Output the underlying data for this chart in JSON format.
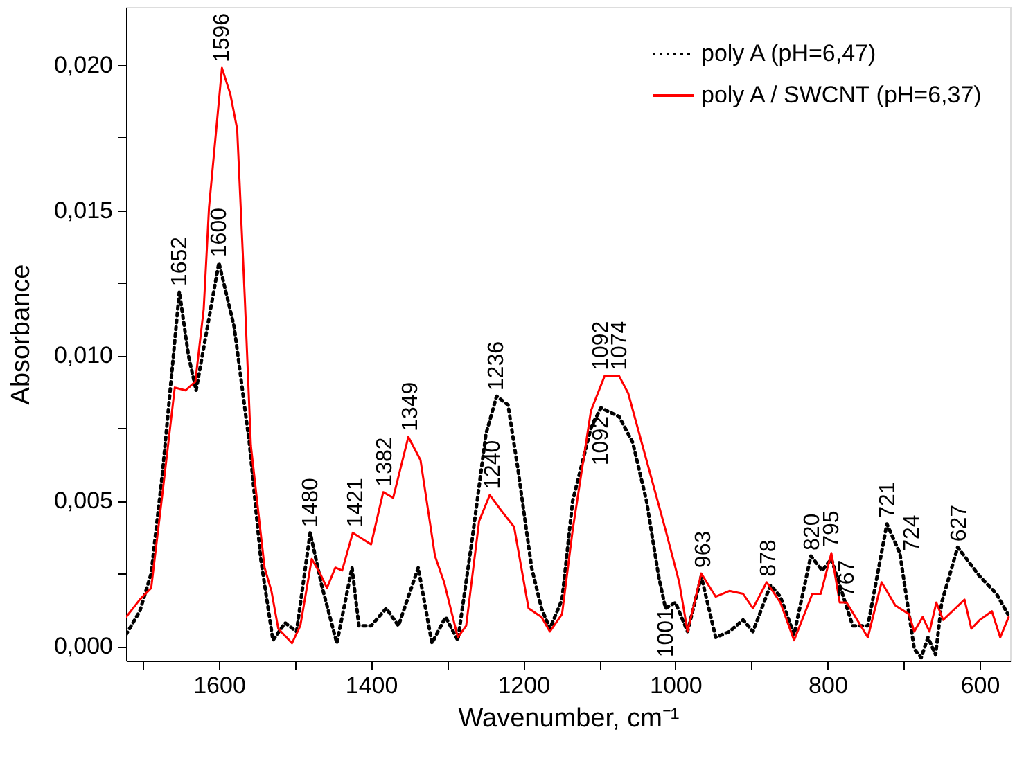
{
  "chart_data": {
    "type": "line",
    "xlabel": "Wavenumber, cm⁻¹",
    "ylabel": "Absorbance",
    "xlim": [
      1722,
      560
    ],
    "ylim": [
      -0.0005,
      0.022
    ],
    "xticks": [
      {
        "value": 1700,
        "label": null
      },
      1600,
      {
        "value": 1500,
        "label": null
      },
      1400,
      {
        "value": 1300,
        "label": null
      },
      1200,
      {
        "value": 1100,
        "label": null
      },
      1000,
      {
        "value": 900,
        "label": null
      },
      800,
      {
        "value": 700,
        "label": null
      },
      600
    ],
    "yticks": [
      {
        "value": 0.0,
        "label": "0,000"
      },
      {
        "value": 0.0025,
        "label": null
      },
      {
        "value": 0.005,
        "label": "0,005"
      },
      {
        "value": 0.0075,
        "label": null
      },
      {
        "value": 0.01,
        "label": "0,010"
      },
      {
        "value": 0.0125,
        "label": null
      },
      {
        "value": 0.015,
        "label": "0,015"
      },
      {
        "value": 0.0175,
        "label": null
      },
      {
        "value": 0.02,
        "label": "0,020"
      }
    ],
    "grid": false,
    "legend": "top right",
    "marker": "none",
    "series": [
      {
        "name": "poly A (pH=6,47)",
        "color": "#000000",
        "line_style": "dotted",
        "x": [
          1722,
          1704,
          1689,
          1674,
          1652,
          1640,
          1630,
          1615,
          1600,
          1580,
          1560,
          1545,
          1529,
          1513,
          1498,
          1480,
          1465,
          1445,
          1425,
          1416,
          1400,
          1380,
          1364,
          1338,
          1320,
          1302,
          1286,
          1267,
          1249,
          1235,
          1220,
          1207,
          1189,
          1176,
          1165,
          1149,
          1135,
          1111,
          1098,
          1074,
          1056,
          1038,
          1022,
          1013,
          1000,
          984,
          966,
          947,
          929,
          911,
          898,
          875,
          862,
          844,
          822,
          807,
          795,
          767,
          747,
          722,
          705,
          686,
          677,
          668,
          658,
          650,
          629,
          600,
          578,
          563
        ],
        "values": [
          0.0004,
          0.0012,
          0.0025,
          0.006,
          0.0122,
          0.01,
          0.0088,
          0.011,
          0.0132,
          0.011,
          0.007,
          0.003,
          0.0002,
          0.0008,
          0.0005,
          0.0039,
          0.0021,
          0.0001,
          0.0027,
          0.0007,
          0.0007,
          0.0013,
          0.0007,
          0.0027,
          0.0001,
          0.001,
          0.0002,
          0.0037,
          0.0073,
          0.0086,
          0.0083,
          0.0061,
          0.0027,
          0.0013,
          0.0006,
          0.0016,
          0.005,
          0.0075,
          0.0082,
          0.0079,
          0.007,
          0.005,
          0.0024,
          0.0013,
          0.0015,
          0.0005,
          0.0024,
          0.0003,
          0.0005,
          0.0009,
          0.0005,
          0.0021,
          0.0017,
          0.0004,
          0.0031,
          0.0026,
          0.003,
          0.0007,
          0.0007,
          0.0042,
          0.0032,
          -0.0001,
          -0.0004,
          0.0003,
          -0.0003,
          0.0015,
          0.0034,
          0.0024,
          0.0018,
          0.0011
        ]
      },
      {
        "name": "poly A / SWCNT (pH=6,37)",
        "color": "#ff0000",
        "line_style": "solid",
        "x": [
          1722,
          1704,
          1689,
          1674,
          1658,
          1644,
          1631,
          1620,
          1613,
          1596,
          1585,
          1576,
          1566,
          1558,
          1540,
          1531,
          1522,
          1504,
          1493,
          1478,
          1467,
          1458,
          1447,
          1438,
          1424,
          1400,
          1384,
          1371,
          1351,
          1335,
          1316,
          1304,
          1286,
          1275,
          1258,
          1244,
          1227,
          1212,
          1193,
          1176,
          1165,
          1149,
          1135,
          1111,
          1093,
          1074,
          1062,
          1038,
          1013,
          995,
          984,
          966,
          947,
          929,
          911,
          898,
          880,
          862,
          844,
          820,
          809,
          795,
          784,
          775,
          747,
          729,
          711,
          693,
          686,
          675,
          666,
          657,
          648,
          620,
          611,
          600,
          584,
          573,
          562
        ],
        "values": [
          0.001,
          0.0016,
          0.002,
          0.0053,
          0.0089,
          0.0088,
          0.0091,
          0.0116,
          0.0151,
          0.0199,
          0.019,
          0.0178,
          0.012,
          0.0069,
          0.0027,
          0.0019,
          0.0006,
          0.0001,
          0.0007,
          0.003,
          0.0025,
          0.002,
          0.0027,
          0.0026,
          0.0039,
          0.0035,
          0.0053,
          0.0051,
          0.0072,
          0.0064,
          0.0031,
          0.0022,
          0.0003,
          0.0007,
          0.0043,
          0.0052,
          0.0046,
          0.0041,
          0.0013,
          0.001,
          0.0005,
          0.0011,
          0.004,
          0.0081,
          0.0093,
          0.0093,
          0.0087,
          0.0064,
          0.004,
          0.0022,
          0.0005,
          0.0025,
          0.0017,
          0.0019,
          0.0018,
          0.0013,
          0.0022,
          0.0015,
          0.0002,
          0.0018,
          0.0018,
          0.0032,
          0.0015,
          0.0015,
          0.0003,
          0.0022,
          0.0014,
          0.0011,
          0.0005,
          0.001,
          0.0005,
          0.0015,
          0.0009,
          0.0016,
          0.0006,
          0.0009,
          0.0012,
          0.0003,
          0.001
        ]
      }
    ],
    "annotations": [
      {
        "text": "1596",
        "x": 1596,
        "y": 0.0199
      },
      {
        "text": "1652",
        "x": 1652,
        "y": 0.0122
      },
      {
        "text": "1600",
        "x": 1600,
        "y": 0.0132
      },
      {
        "text": "1480",
        "x": 1480,
        "y": 0.0039
      },
      {
        "text": "1421",
        "x": 1421,
        "y": 0.0039
      },
      {
        "text": "1382",
        "x": 1382,
        "y": 0.0053
      },
      {
        "text": "1349",
        "x": 1349,
        "y": 0.0072
      },
      {
        "text": "1236",
        "x": 1236,
        "y": 0.0086
      },
      {
        "text": "1240",
        "x": 1240,
        "y": 0.0052
      },
      {
        "text": "1092",
        "x": 1098,
        "y": 0.0093
      },
      {
        "text": "1074",
        "x": 1074,
        "y": 0.0093
      },
      {
        "text": "1092",
        "x": 1098,
        "y": 0.0082
      },
      {
        "text": "1001",
        "x": 1000,
        "y": 0.0015
      },
      {
        "text": "963",
        "x": 963,
        "y": 0.0025
      },
      {
        "text": "878",
        "x": 878,
        "y": 0.0022
      },
      {
        "text": "820",
        "x": 820,
        "y": 0.0031
      },
      {
        "text": "795",
        "x": 795,
        "y": 0.0032
      },
      {
        "text": "767",
        "x": 775,
        "y": 0.0015
      },
      {
        "text": "721",
        "x": 721,
        "y": 0.0042
      },
      {
        "text": "724",
        "x": 729,
        "y": 0.0022
      },
      {
        "text": "627",
        "x": 627,
        "y": 0.0034
      }
    ]
  }
}
